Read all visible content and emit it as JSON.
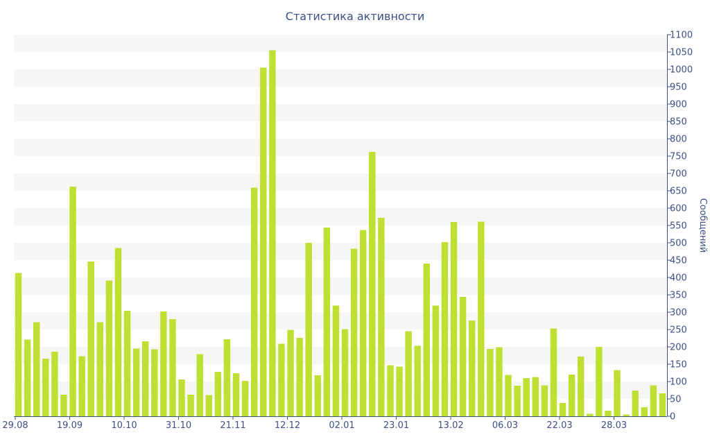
{
  "chart_data": {
    "type": "bar",
    "title": "Статистика активности",
    "xlabel": "",
    "ylabel": "Сообщений",
    "ylim": [
      0,
      1100
    ],
    "y_ticks": [
      0,
      50,
      100,
      150,
      200,
      250,
      300,
      350,
      400,
      450,
      500,
      550,
      600,
      650,
      700,
      750,
      800,
      850,
      900,
      950,
      1000,
      1050,
      1100
    ],
    "x_tick_labels": [
      "29.08",
      "19.09",
      "10.10",
      "31.10",
      "21.11",
      "12.12",
      "02.01",
      "23.01",
      "13.02",
      "06.03",
      "22.03",
      "28.03"
    ],
    "x_tick_bar_index": [
      0,
      6,
      12,
      18,
      24,
      30,
      36,
      42,
      48,
      54,
      60,
      66
    ],
    "grid": "horizontal-bands",
    "y_axis_position": "right",
    "colors": {
      "bar": "#bde033",
      "band": "#f6f6f6",
      "axis": "#3d4f86"
    },
    "values": [
      413,
      221,
      271,
      166,
      186,
      62,
      662,
      173,
      446,
      271,
      391,
      485,
      304,
      195,
      216,
      193,
      302,
      280,
      106,
      62,
      179,
      61,
      128,
      222,
      124,
      102,
      659,
      1005,
      1055,
      209,
      249,
      226,
      500,
      118,
      544,
      319,
      251,
      483,
      537,
      762,
      572,
      147,
      143,
      245,
      203,
      440,
      319,
      502,
      560,
      344,
      276,
      561,
      194,
      199,
      119,
      88,
      110,
      113,
      89,
      253,
      38,
      120,
      172,
      7,
      200,
      16,
      133,
      5,
      74,
      26,
      89,
      66
    ]
  }
}
